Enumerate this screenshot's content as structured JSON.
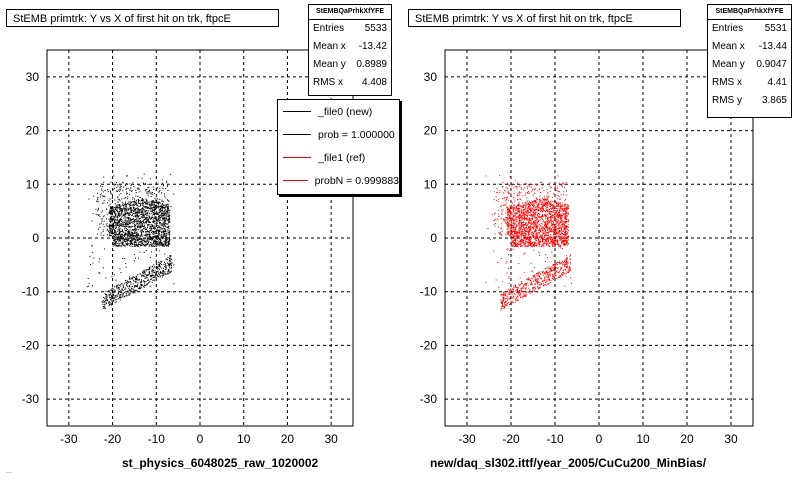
{
  "chart_data": [
    {
      "type": "scatter",
      "title": "StEMB primtrk: Y vs X of first hit on trk, ftpcE",
      "xlabel": "st_physics_6048025_raw_1020002",
      "ylabel": "",
      "xlim": [
        -35,
        35
      ],
      "ylim": [
        -35,
        35
      ],
      "xticks": [
        -30,
        -20,
        -10,
        0,
        10,
        20,
        30
      ],
      "yticks": [
        -30,
        -20,
        -10,
        0,
        10,
        20,
        30
      ],
      "grid": true,
      "marker_color": "#000000",
      "stats": {
        "name": "StEMBQaPrhkXfYFE",
        "entries_label": "Entries",
        "entries": "5533",
        "meanx_label": "Mean x",
        "meanx": "-13.42",
        "meany_label": "Mean y",
        "meany": "0.8989",
        "rmsx_label": "RMS x",
        "rmsx": "4.408"
      },
      "legend": {
        "placement": "right",
        "entries": [
          {
            "label": "_file0 (new)",
            "color": "#000000"
          },
          {
            "label": "prob = 1.000000",
            "color": "#000000"
          },
          {
            "label": "_file1 (ref)",
            "color": "#ff0000"
          },
          {
            "label": "probN = 0.999883",
            "color": "#ff0000"
          }
        ]
      }
    },
    {
      "type": "scatter",
      "title": "StEMB primtrk: Y vs X of first hit on trk, ftpcE",
      "xlabel": "new/daq_sl302.ittf/year_2005/CuCu200_MinBias/",
      "ylabel": "",
      "xlim": [
        -35,
        35
      ],
      "ylim": [
        -35,
        35
      ],
      "xticks": [
        -30,
        -20,
        -10,
        0,
        10,
        20,
        30
      ],
      "yticks": [
        -30,
        -20,
        -10,
        0,
        10,
        20,
        30
      ],
      "grid": true,
      "marker_color": "#ff0000",
      "stats": {
        "name": "StEMBQaPrhkXfYFE",
        "entries_label": "Entries",
        "entries": "5531",
        "meanx_label": "Mean x",
        "meanx": "-13.44",
        "meany_label": "Mean y",
        "meany": "0.9047",
        "rmsx_label": "RMS x",
        "rmsx": "4.41",
        "rmsy_label": "RMS y",
        "rmsy": "3.865"
      }
    }
  ],
  "footer_small": "..."
}
